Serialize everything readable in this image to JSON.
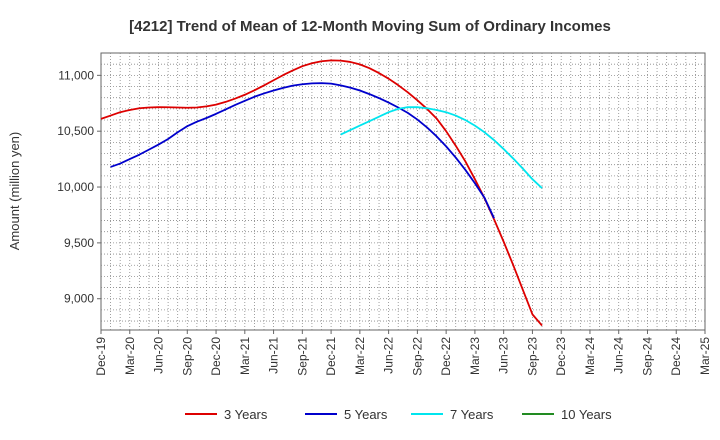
{
  "chart_data": {
    "type": "line",
    "title": "[4212]  Trend of Mean of 12-Month Moving Sum of Ordinary Incomes",
    "xlabel": "",
    "ylabel": "Amount (million yen)",
    "ylim": [
      8720,
      11200
    ],
    "yticks": [
      9000,
      9500,
      10000,
      10500,
      11000
    ],
    "ytick_labels": [
      "9,000",
      "9,500",
      "10,000",
      "10,500",
      "11,000"
    ],
    "x_tick_labels": [
      "Dec-19",
      "Mar-20",
      "Jun-20",
      "Sep-20",
      "Dec-20",
      "Mar-21",
      "Jun-21",
      "Sep-21",
      "Dec-21",
      "Mar-22",
      "Jun-22",
      "Sep-22",
      "Dec-22",
      "Mar-23",
      "Jun-23",
      "Sep-23",
      "Dec-23",
      "Mar-24",
      "Jun-24",
      "Sep-24",
      "Dec-24",
      "Mar-25"
    ],
    "grid": true,
    "legend_position": "bottom",
    "series": [
      {
        "name": "3 Years",
        "color": "#dd0000",
        "start_index": 0,
        "values": [
          10610,
          10640,
          10670,
          10690,
          10705,
          10712,
          10715,
          10714,
          10712,
          10710,
          10712,
          10722,
          10738,
          10762,
          10792,
          10826,
          10866,
          10910,
          10956,
          11002,
          11044,
          11082,
          11108,
          11126,
          11134,
          11132,
          11120,
          11098,
          11064,
          11020,
          10970,
          10912,
          10848,
          10776,
          10700,
          10614,
          10500,
          10370,
          10230,
          10070,
          9900,
          9710,
          9510,
          9300,
          9080,
          8860,
          8760
        ]
      },
      {
        "name": "5 Years",
        "color": "#0000cc",
        "start_index": 1,
        "values": [
          10180,
          10210,
          10250,
          10290,
          10335,
          10380,
          10430,
          10490,
          10545,
          10585,
          10618,
          10655,
          10695,
          10735,
          10772,
          10808,
          10838,
          10864,
          10888,
          10908,
          10920,
          10928,
          10930,
          10926,
          10910,
          10890,
          10864,
          10832,
          10796,
          10756,
          10712,
          10664,
          10604,
          10534,
          10454,
          10364,
          10264,
          10154,
          10034,
          9904,
          9720
        ]
      },
      {
        "name": "7 Years",
        "color": "#00e5ee",
        "start_index": 25,
        "values": [
          10470,
          10510,
          10550,
          10590,
          10630,
          10670,
          10700,
          10715,
          10715,
          10705,
          10690,
          10670,
          10640,
          10600,
          10550,
          10490,
          10420,
          10340,
          10255,
          10165,
          10070,
          9990
        ]
      },
      {
        "name": "10 Years",
        "color": "#228b22",
        "start_index": 0,
        "values": []
      }
    ]
  }
}
